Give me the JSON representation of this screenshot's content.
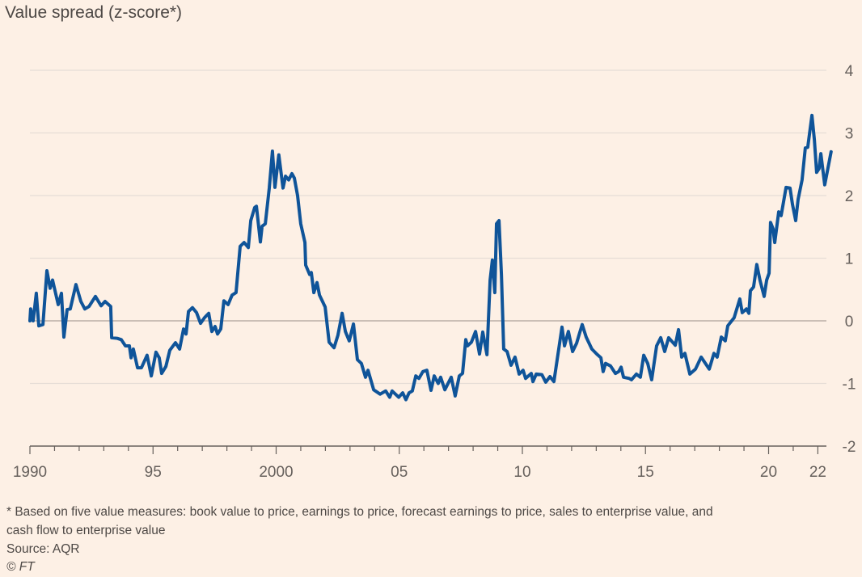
{
  "chart_data": {
    "type": "line",
    "title": "Value spread (z-score*)",
    "xlabel": "",
    "ylabel": "",
    "xlim": [
      1990,
      2022.6
    ],
    "ylim": [
      -2,
      4
    ],
    "y_ticks": [
      4,
      3,
      2,
      1,
      0,
      -1,
      -2
    ],
    "y_tick_labels": [
      "4",
      "3",
      "2",
      "1",
      "0",
      "-1",
      "-2"
    ],
    "x_ticks": [
      1990,
      1995,
      2000,
      2005,
      2010,
      2015,
      2020,
      2022
    ],
    "x_tick_labels": [
      "1990",
      "95",
      "2000",
      "05",
      "10",
      "15",
      "20",
      "22"
    ],
    "grid": true,
    "series": [
      {
        "name": "Value spread",
        "color": "#0f5499",
        "x": [
          1990.0,
          1990.03,
          1990.13,
          1990.26,
          1990.36,
          1990.53,
          1990.69,
          1990.82,
          1990.92,
          1991.15,
          1991.28,
          1991.38,
          1991.51,
          1991.64,
          1991.87,
          1992.07,
          1992.23,
          1992.4,
          1992.66,
          1992.89,
          1993.05,
          1993.28,
          1993.32,
          1993.55,
          1993.71,
          1993.88,
          1994.04,
          1994.11,
          1994.2,
          1994.37,
          1994.53,
          1994.76,
          1994.93,
          1995.12,
          1995.25,
          1995.35,
          1995.52,
          1995.68,
          1995.91,
          1996.08,
          1996.24,
          1996.34,
          1996.44,
          1996.6,
          1996.77,
          1996.93,
          1997.09,
          1997.26,
          1997.39,
          1997.52,
          1997.62,
          1997.75,
          1997.88,
          1998.05,
          1998.21,
          1998.37,
          1998.54,
          1998.7,
          1998.87,
          1998.97,
          1999.13,
          1999.2,
          1999.36,
          1999.43,
          1999.56,
          1999.72,
          1999.85,
          1999.95,
          2000.11,
          2000.28,
          2000.38,
          2000.51,
          2000.64,
          2000.74,
          2000.87,
          2001.0,
          2001.17,
          2001.2,
          2001.36,
          2001.43,
          2001.53,
          2001.66,
          2001.76,
          2001.99,
          2002.15,
          2002.35,
          2002.51,
          2002.68,
          2002.81,
          2002.97,
          2003.14,
          2003.3,
          2003.46,
          2003.63,
          2003.73,
          2003.96,
          2004.22,
          2004.45,
          2004.61,
          2004.71,
          2004.98,
          2005.14,
          2005.27,
          2005.4,
          2005.53,
          2005.67,
          2005.8,
          2005.96,
          2006.12,
          2006.29,
          2006.42,
          2006.58,
          2006.68,
          2006.85,
          2007.11,
          2007.27,
          2007.44,
          2007.57,
          2007.7,
          2007.77,
          2007.93,
          2008.1,
          2008.26,
          2008.39,
          2008.56,
          2008.69,
          2008.78,
          2008.88,
          2008.95,
          2009.05,
          2009.15,
          2009.24,
          2009.38,
          2009.54,
          2009.7,
          2009.87,
          2010.03,
          2010.13,
          2010.36,
          2010.43,
          2010.56,
          2010.79,
          2010.95,
          2011.12,
          2011.28,
          2011.61,
          2011.71,
          2011.87,
          2012.04,
          2012.2,
          2012.33,
          2012.43,
          2012.59,
          2012.82,
          2013.02,
          2013.19,
          2013.28,
          2013.38,
          2013.58,
          2013.78,
          2013.91,
          2014.01,
          2014.11,
          2014.34,
          2014.43,
          2014.63,
          2014.79,
          2014.93,
          2015.09,
          2015.25,
          2015.45,
          2015.62,
          2015.78,
          2015.94,
          2016.21,
          2016.34,
          2016.47,
          2016.6,
          2016.8,
          2017.03,
          2017.26,
          2017.59,
          2017.78,
          2017.91,
          2018.08,
          2018.24,
          2018.34,
          2018.6,
          2018.83,
          2018.93,
          2019.1,
          2019.2,
          2019.26,
          2019.39,
          2019.52,
          2019.65,
          2019.82,
          2019.92,
          2020.02,
          2020.08,
          2020.18,
          2020.25,
          2020.41,
          2020.51,
          2020.71,
          2020.87,
          2020.97,
          2021.1,
          2021.2,
          2021.36,
          2021.49,
          2021.59,
          2021.76,
          2021.86,
          2021.95,
          2022.05,
          2022.12,
          2022.28,
          2022.54
        ],
        "y": [
          0.0,
          0.19,
          0.0,
          0.44,
          -0.08,
          -0.06,
          0.8,
          0.52,
          0.65,
          0.26,
          0.44,
          -0.26,
          0.18,
          0.19,
          0.58,
          0.31,
          0.19,
          0.23,
          0.39,
          0.24,
          0.31,
          0.23,
          -0.27,
          -0.28,
          -0.3,
          -0.4,
          -0.4,
          -0.59,
          -0.45,
          -0.75,
          -0.75,
          -0.55,
          -0.88,
          -0.5,
          -0.59,
          -0.84,
          -0.73,
          -0.47,
          -0.35,
          -0.45,
          -0.13,
          -0.21,
          0.15,
          0.21,
          0.13,
          -0.04,
          0.05,
          0.12,
          -0.17,
          -0.09,
          -0.21,
          -0.13,
          0.32,
          0.26,
          0.41,
          0.45,
          1.19,
          1.25,
          1.17,
          1.6,
          1.81,
          1.83,
          1.26,
          1.51,
          1.55,
          2.12,
          2.71,
          2.13,
          2.65,
          2.12,
          2.31,
          2.25,
          2.35,
          2.28,
          2.0,
          1.55,
          1.25,
          0.89,
          0.74,
          0.77,
          0.45,
          0.61,
          0.41,
          0.22,
          -0.34,
          -0.43,
          -0.23,
          0.12,
          -0.17,
          -0.32,
          -0.05,
          -0.62,
          -0.68,
          -0.9,
          -0.79,
          -1.1,
          -1.17,
          -1.12,
          -1.22,
          -1.12,
          -1.22,
          -1.15,
          -1.26,
          -1.15,
          -1.12,
          -0.88,
          -0.92,
          -0.81,
          -0.79,
          -1.11,
          -0.88,
          -1.0,
          -0.9,
          -1.1,
          -0.9,
          -1.2,
          -0.88,
          -0.84,
          -0.3,
          -0.4,
          -0.34,
          -0.17,
          -0.53,
          -0.18,
          -0.54,
          0.65,
          0.97,
          0.45,
          1.55,
          1.6,
          0.74,
          -0.45,
          -0.49,
          -0.71,
          -0.58,
          -0.85,
          -0.79,
          -0.92,
          -0.84,
          -0.97,
          -0.85,
          -0.86,
          -0.98,
          -0.89,
          -0.97,
          -0.1,
          -0.4,
          -0.17,
          -0.49,
          -0.36,
          -0.19,
          -0.06,
          -0.26,
          -0.45,
          -0.53,
          -0.59,
          -0.81,
          -0.68,
          -0.72,
          -0.84,
          -0.81,
          -0.74,
          -0.9,
          -0.92,
          -0.94,
          -0.85,
          -0.9,
          -0.55,
          -0.68,
          -0.94,
          -0.4,
          -0.27,
          -0.49,
          -0.27,
          -0.39,
          -0.14,
          -0.58,
          -0.52,
          -0.85,
          -0.77,
          -0.58,
          -0.77,
          -0.52,
          -0.58,
          -0.26,
          -0.32,
          -0.08,
          0.05,
          0.35,
          0.13,
          0.19,
          0.12,
          0.48,
          0.54,
          0.9,
          0.65,
          0.39,
          0.65,
          0.76,
          1.57,
          1.47,
          1.25,
          1.74,
          1.68,
          2.13,
          2.12,
          1.86,
          1.6,
          1.94,
          2.25,
          2.76,
          2.77,
          3.28,
          2.89,
          2.37,
          2.43,
          2.67,
          2.17,
          2.7
        ]
      }
    ],
    "footnote": "* Based on five value measures: book value to price, earnings to price, forecast earnings to price, sales to enterprise value, and",
    "footnote_cont": "cash flow to enterprise value",
    "source": "Source: AQR",
    "credit": "© FT"
  }
}
